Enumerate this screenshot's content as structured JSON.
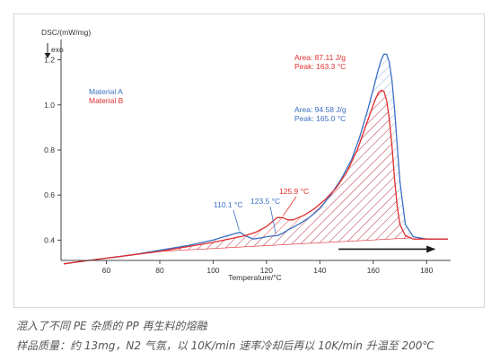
{
  "caption": {
    "line1": "混入了不同 PE 杂质的 PP 再生料的熔融",
    "line2": "样品质量：约 13mg，N2 气氛，以 10K/min 速率冷却后再以 10K/min 升温至 200℃"
  },
  "chart_data": {
    "type": "line",
    "ylabel": "DSC/(mW/mg)",
    "exo_label": "exo",
    "xlabel": "Temperature/°C",
    "xlim": [
      43,
      189
    ],
    "ylim": [
      0.31,
      1.29
    ],
    "xticks": [
      60,
      80,
      100,
      120,
      140,
      160,
      180
    ],
    "yticks": [
      0.4,
      0.6,
      0.8,
      1.0,
      1.2
    ],
    "ytick_labels": [
      "0.4",
      "0.6",
      "0.8",
      "1.0",
      "1.2"
    ],
    "grid": false,
    "legend_position": "left",
    "colors": {
      "material_a": "#3a6fc4",
      "material_b": "#e02d2d",
      "axis": "#444444",
      "text": "#333333"
    },
    "series": [
      {
        "name": "Material A",
        "color": "#3a6fc4",
        "x": [
          44,
          50,
          60,
          70,
          80,
          90,
          100,
          104,
          107,
          110,
          112,
          115,
          118,
          120,
          122,
          124,
          126,
          128,
          132,
          136,
          140,
          144,
          148,
          152,
          155,
          158,
          160,
          162,
          163,
          164,
          165,
          166,
          167,
          168,
          169,
          170,
          172,
          175,
          180,
          188
        ],
        "values": [
          0.295,
          0.305,
          0.32,
          0.335,
          0.355,
          0.375,
          0.4,
          0.415,
          0.425,
          0.435,
          0.42,
          0.405,
          0.41,
          0.415,
          0.418,
          0.42,
          0.43,
          0.445,
          0.47,
          0.5,
          0.54,
          0.6,
          0.67,
          0.76,
          0.86,
          0.98,
          1.07,
          1.16,
          1.2,
          1.225,
          1.225,
          1.19,
          1.11,
          0.98,
          0.82,
          0.66,
          0.47,
          0.415,
          0.405,
          0.405
        ]
      },
      {
        "name": "Material B",
        "color": "#e02d2d",
        "x": [
          44,
          50,
          60,
          70,
          80,
          90,
          100,
          104,
          108,
          112,
          116,
          120,
          122,
          124,
          126,
          128,
          130,
          134,
          138,
          142,
          146,
          150,
          154,
          157,
          160,
          161,
          162,
          163,
          164,
          165,
          166,
          167,
          168,
          169,
          170,
          172,
          175,
          180,
          188
        ],
        "values": [
          0.295,
          0.305,
          0.32,
          0.335,
          0.35,
          0.37,
          0.39,
          0.4,
          0.41,
          0.42,
          0.435,
          0.46,
          0.48,
          0.5,
          0.5,
          0.49,
          0.49,
          0.51,
          0.54,
          0.58,
          0.63,
          0.7,
          0.8,
          0.9,
          1.0,
          1.03,
          1.055,
          1.065,
          1.06,
          1.02,
          0.94,
          0.82,
          0.67,
          0.55,
          0.47,
          0.42,
          0.405,
          0.405,
          0.405
        ]
      }
    ],
    "legend": [
      {
        "label": "Material A",
        "color": "#3a6fc4"
      },
      {
        "label": "Material B",
        "color": "#e02d2d"
      }
    ],
    "annotations": {
      "material_b_area": "Area: 87.11 J/g",
      "material_b_peak": "Peak: 163.3 °C",
      "material_a_area": "Area: 94.58 J/g",
      "material_a_peak": "Peak: 165.0 °C",
      "peak_a_110": {
        "label": "110.1 °C",
        "x": 110.1,
        "y": 0.435,
        "color": "#3a6fc4"
      },
      "peak_a_123": {
        "label": "123.5 °C",
        "x": 123.5,
        "y": 0.42,
        "color": "#3a6fc4"
      },
      "peak_b_126": {
        "label": "125.9 °C",
        "x": 125.9,
        "y": 0.5,
        "color": "#e02d2d"
      }
    },
    "hatch": {
      "material_b": {
        "baseline_start": [
          80,
          0.35
        ],
        "baseline_end": [
          174,
          0.41
        ]
      }
    },
    "direction_arrow": {
      "from_x": 147,
      "to_x": 183,
      "y": 0.36
    }
  }
}
